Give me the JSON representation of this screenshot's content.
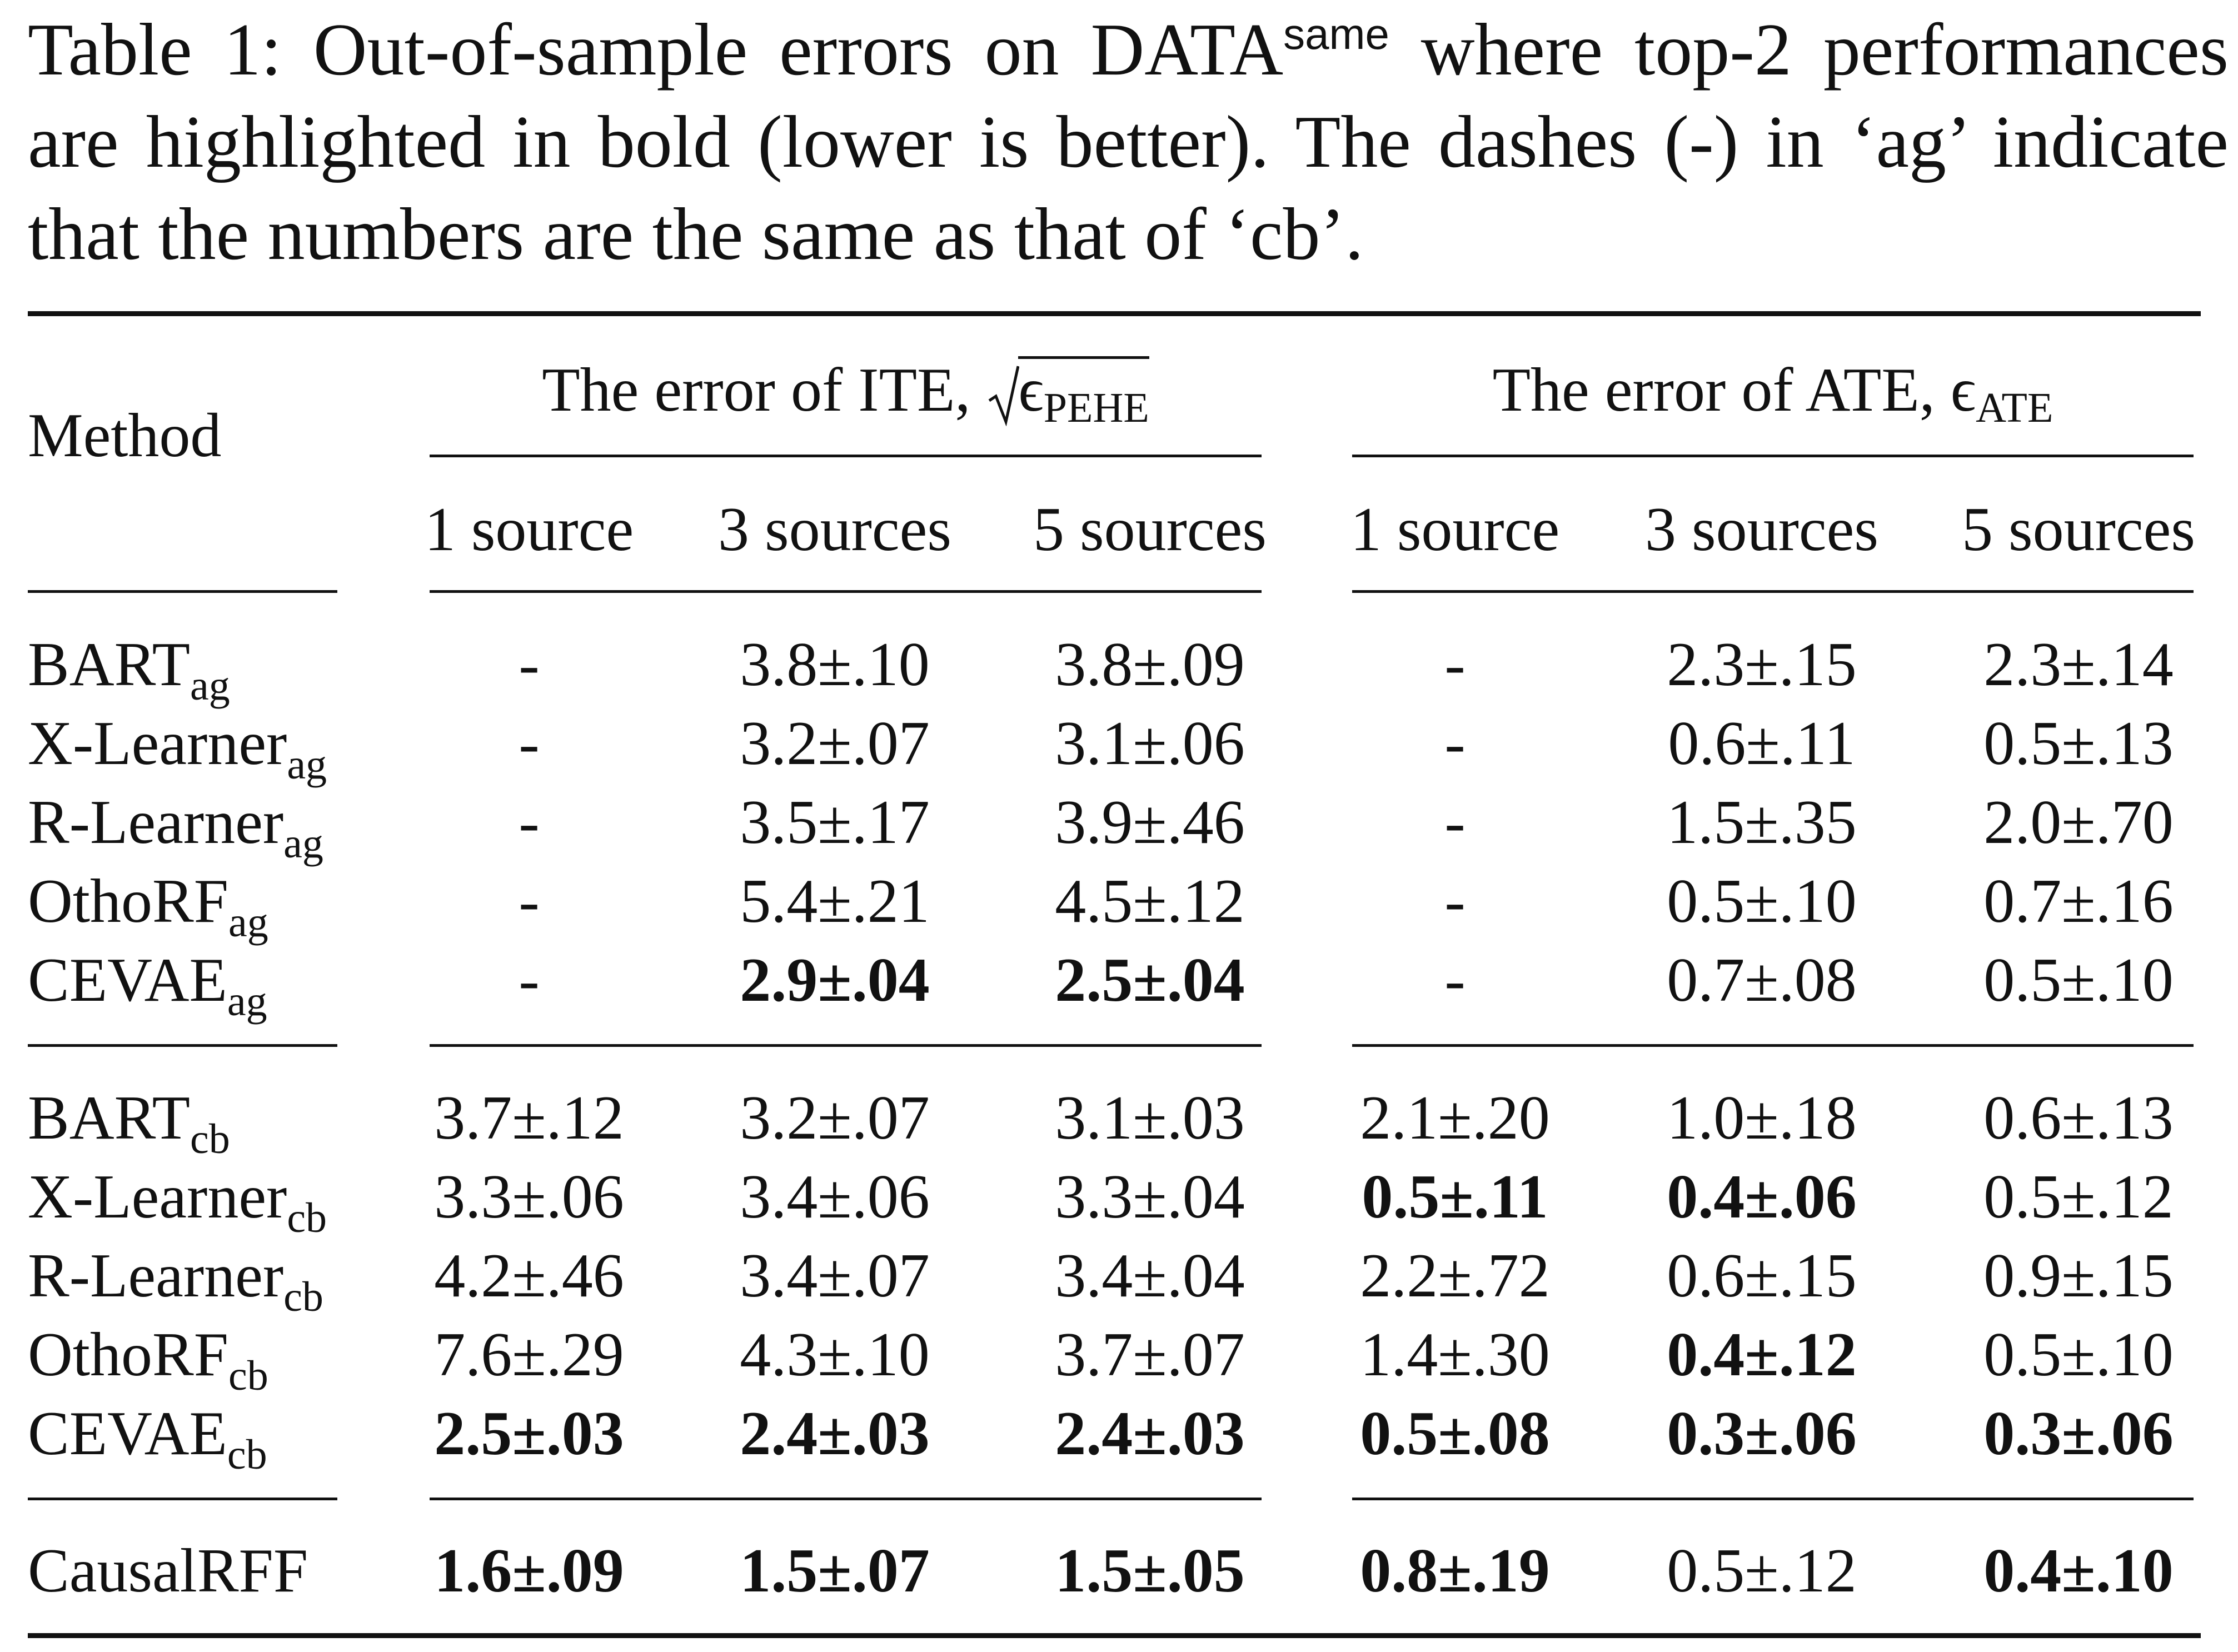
{
  "caption": {
    "prefix": "Table 1: Out-of-sample errors on DATA",
    "sup": "same",
    "rest": " where top-2 performances are highlighted in bold (lower is better). The dashes (-) in ‘ag’ indicate that the numbers are the same as that of ‘cb’."
  },
  "header": {
    "method": "Method",
    "ite_group": "The error of ITE,",
    "ite_symbol": "ϵ",
    "ite_sub": "PEHE",
    "ate_group": "The error of ATE,",
    "ate_symbol": "ϵ",
    "ate_sub": "ATE",
    "columns": [
      "1 source",
      "3 sources",
      "5 sources",
      "1 source",
      "3 sources",
      "5 sources"
    ]
  },
  "rows": [
    {
      "base": "BART",
      "sub": "ag",
      "cells": [
        {
          "v": "-",
          "b": false
        },
        {
          "v": "3.8±.10",
          "b": false
        },
        {
          "v": "3.8±.09",
          "b": false
        },
        {
          "v": "-",
          "b": false
        },
        {
          "v": "2.3±.15",
          "b": false
        },
        {
          "v": "2.3±.14",
          "b": false
        }
      ]
    },
    {
      "base": "X-Learner",
      "sub": "ag",
      "cells": [
        {
          "v": "-",
          "b": false
        },
        {
          "v": "3.2±.07",
          "b": false
        },
        {
          "v": "3.1±.06",
          "b": false
        },
        {
          "v": "-",
          "b": false
        },
        {
          "v": "0.6±.11",
          "b": false
        },
        {
          "v": "0.5±.13",
          "b": false
        }
      ]
    },
    {
      "base": "R-Learner",
      "sub": "ag",
      "cells": [
        {
          "v": "-",
          "b": false
        },
        {
          "v": "3.5±.17",
          "b": false
        },
        {
          "v": "3.9±.46",
          "b": false
        },
        {
          "v": "-",
          "b": false
        },
        {
          "v": "1.5±.35",
          "b": false
        },
        {
          "v": "2.0±.70",
          "b": false
        }
      ]
    },
    {
      "base": "OthoRF",
      "sub": "ag",
      "cells": [
        {
          "v": "-",
          "b": false
        },
        {
          "v": "5.4±.21",
          "b": false
        },
        {
          "v": "4.5±.12",
          "b": false
        },
        {
          "v": "-",
          "b": false
        },
        {
          "v": "0.5±.10",
          "b": false
        },
        {
          "v": "0.7±.16",
          "b": false
        }
      ]
    },
    {
      "base": "CEVAE",
      "sub": "ag",
      "cells": [
        {
          "v": "-",
          "b": false
        },
        {
          "v": "2.9±.04",
          "b": true
        },
        {
          "v": "2.5±.04",
          "b": true
        },
        {
          "v": "-",
          "b": false
        },
        {
          "v": "0.7±.08",
          "b": false
        },
        {
          "v": "0.5±.10",
          "b": false
        }
      ]
    },
    {
      "base": "BART",
      "sub": "cb",
      "cells": [
        {
          "v": "3.7±.12",
          "b": false
        },
        {
          "v": "3.2±.07",
          "b": false
        },
        {
          "v": "3.1±.03",
          "b": false
        },
        {
          "v": "2.1±.20",
          "b": false
        },
        {
          "v": "1.0±.18",
          "b": false
        },
        {
          "v": "0.6±.13",
          "b": false
        }
      ]
    },
    {
      "base": "X-Learner",
      "sub": "cb",
      "cells": [
        {
          "v": "3.3±.06",
          "b": false
        },
        {
          "v": "3.4±.06",
          "b": false
        },
        {
          "v": "3.3±.04",
          "b": false
        },
        {
          "v": "0.5±.11",
          "b": true
        },
        {
          "v": "0.4±.06",
          "b": true
        },
        {
          "v": "0.5±.12",
          "b": false
        }
      ]
    },
    {
      "base": "R-Learner",
      "sub": "cb",
      "cells": [
        {
          "v": "4.2±.46",
          "b": false
        },
        {
          "v": "3.4±.07",
          "b": false
        },
        {
          "v": "3.4±.04",
          "b": false
        },
        {
          "v": "2.2±.72",
          "b": false
        },
        {
          "v": "0.6±.15",
          "b": false
        },
        {
          "v": "0.9±.15",
          "b": false
        }
      ]
    },
    {
      "base": "OthoRF",
      "sub": "cb",
      "cells": [
        {
          "v": "7.6±.29",
          "b": false
        },
        {
          "v": "4.3±.10",
          "b": false
        },
        {
          "v": "3.7±.07",
          "b": false
        },
        {
          "v": "1.4±.30",
          "b": false
        },
        {
          "v": "0.4±.12",
          "b": true
        },
        {
          "v": "0.5±.10",
          "b": false
        }
      ]
    },
    {
      "base": "CEVAE",
      "sub": "cb",
      "cells": [
        {
          "v": "2.5±.03",
          "b": true
        },
        {
          "v": "2.4±.03",
          "b": true
        },
        {
          "v": "2.4±.03",
          "b": true
        },
        {
          "v": "0.5±.08",
          "b": true
        },
        {
          "v": "0.3±.06",
          "b": true
        },
        {
          "v": "0.3±.06",
          "b": true
        }
      ]
    },
    {
      "base": "CausalRFF",
      "sub": "",
      "cells": [
        {
          "v": "1.6±.09",
          "b": true
        },
        {
          "v": "1.5±.07",
          "b": true
        },
        {
          "v": "1.5±.05",
          "b": true
        },
        {
          "v": "0.8±.19",
          "b": true
        },
        {
          "v": "0.5±.12",
          "b": false
        },
        {
          "v": "0.4±.10",
          "b": true
        }
      ]
    }
  ]
}
